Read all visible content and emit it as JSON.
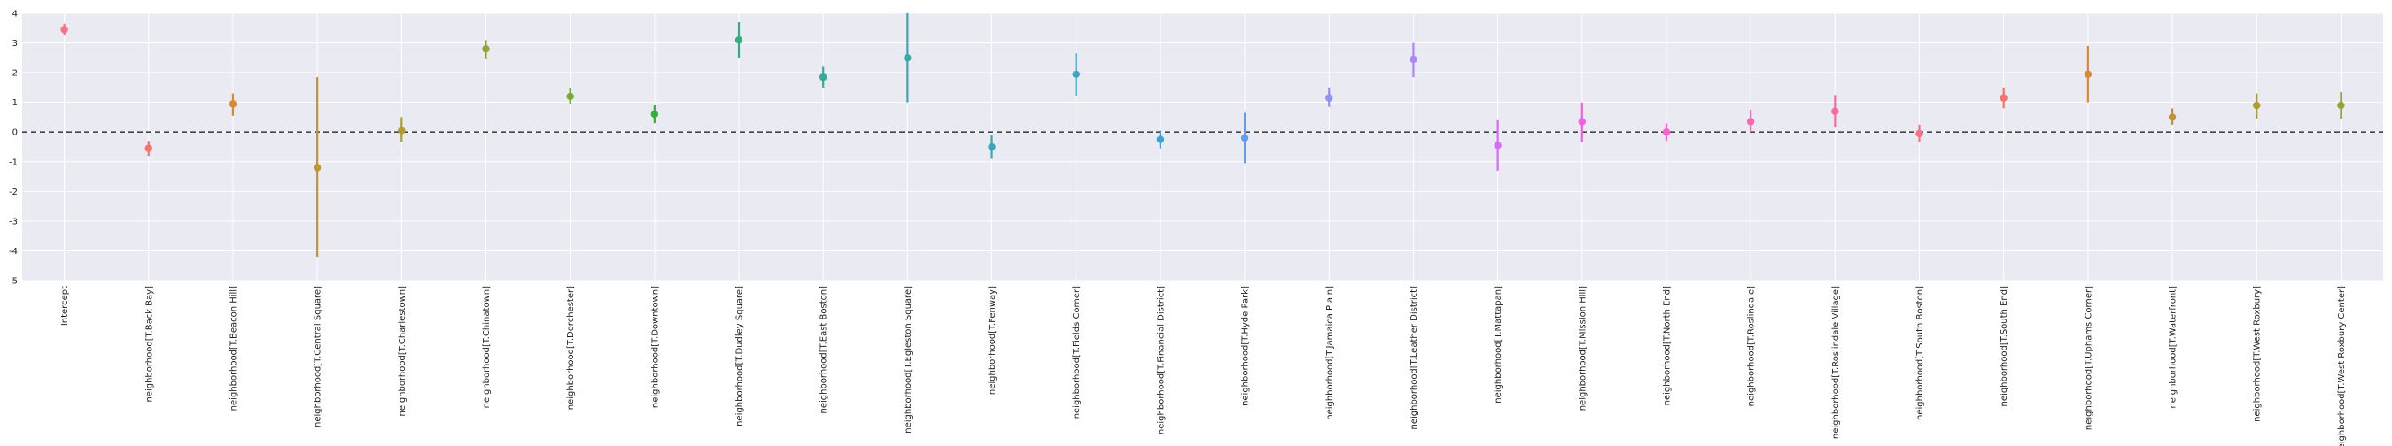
{
  "chart_data": {
    "type": "scatter",
    "title": "",
    "xlabel": "",
    "ylabel": "",
    "ylim": [
      -5,
      4
    ],
    "yticks": [
      4,
      3,
      2,
      1,
      0,
      -1,
      -2,
      -3,
      -4,
      -5
    ],
    "grid": true,
    "reference_line": 0,
    "categories": [
      "Intercept",
      "neighborhood[T.Back Bay]",
      "neighborhood[T.Beacon Hill]",
      "neighborhood[T.Central Square]",
      "neighborhood[T.Charlestown]",
      "neighborhood[T.Chinatown]",
      "neighborhood[T.Dorchester]",
      "neighborhood[T.Downtown]",
      "neighborhood[T.Dudley Square]",
      "neighborhood[T.East Boston]",
      "neighborhood[T.Egleston Square]",
      "neighborhood[T.Fenway]",
      "neighborhood[T.Fields Corner]",
      "neighborhood[T.Financial District]",
      "neighborhood[T.Hyde Park]",
      "neighborhood[T.Jamaica Plain]",
      "neighborhood[T.Leather District]",
      "neighborhood[T.Mattapan]",
      "neighborhood[T.Mission Hill]",
      "neighborhood[T.North End]",
      "neighborhood[T.Roslindale]",
      "neighborhood[T.Roslindale Village]",
      "neighborhood[T.South Boston]",
      "neighborhood[T.South End]",
      "neighborhood[T.Uphams Corner]",
      "neighborhood[T.Waterfront]",
      "neighborhood[T.West Roxbury]",
      "neighborhood[T.West Roxbury Center]"
    ],
    "values": [
      3.45,
      -0.55,
      0.95,
      -1.2,
      0.05,
      2.8,
      1.2,
      0.6,
      3.1,
      1.85,
      2.5,
      -0.5,
      1.95,
      -0.25,
      -0.2,
      1.15,
      2.45,
      -0.45,
      0.35,
      0.0,
      0.35,
      0.7,
      -0.05,
      1.15,
      1.95,
      0.5,
      0.9,
      0.9
    ],
    "lower": [
      3.25,
      -0.8,
      0.55,
      -4.2,
      -0.35,
      2.45,
      0.95,
      0.3,
      2.5,
      1.5,
      1.0,
      -0.9,
      1.2,
      -0.55,
      -1.05,
      0.85,
      1.85,
      -1.3,
      -0.35,
      -0.3,
      0.0,
      0.15,
      -0.35,
      0.8,
      1.0,
      0.25,
      0.45,
      0.45
    ],
    "upper": [
      3.65,
      -0.3,
      1.3,
      1.85,
      0.5,
      3.1,
      1.5,
      0.9,
      3.7,
      2.2,
      4.0,
      -0.1,
      2.65,
      0.05,
      0.65,
      1.5,
      3.0,
      0.4,
      1.0,
      0.3,
      0.75,
      1.25,
      0.25,
      1.5,
      2.9,
      0.8,
      1.3,
      1.35
    ],
    "colors": [
      "#f77189",
      "#f6736b",
      "#dc8932",
      "#c39532",
      "#ae9d31",
      "#97a431",
      "#77ab31",
      "#33b039",
      "#36ad81",
      "#37ab9b",
      "#38aaac",
      "#39a8b8",
      "#3aa6c4",
      "#3ba3d0",
      "#5c9ef4",
      "#8f93f4",
      "#ae87f4",
      "#d46cf4",
      "#f45fe1",
      "#f565cc",
      "#f569b7",
      "#f66c9f",
      "#f77189",
      "#f6736b",
      "#dc8932",
      "#c39532",
      "#ae9d31",
      "#97a431"
    ]
  }
}
